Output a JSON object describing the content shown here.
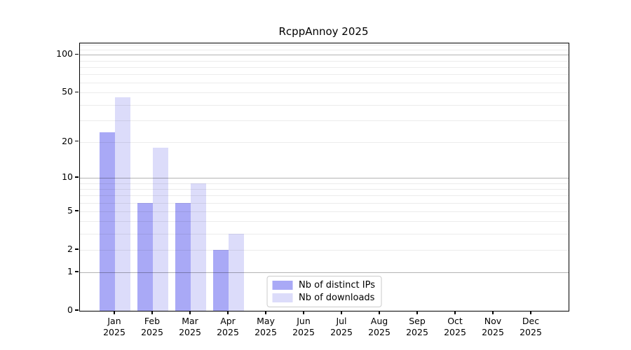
{
  "title": "RcppAnnoy 2025",
  "colors": {
    "distinct_ips": "#a9a9f6",
    "downloads": "#dcdcfa",
    "minor_grid": "#ececec",
    "major_grid": "#b3b3b3",
    "axis": "#000000",
    "legend_border": "#cccccc"
  },
  "chart_data": {
    "type": "bar",
    "title": "RcppAnnoy 2025",
    "categories": [
      "Jan 2025",
      "Feb 2025",
      "Mar 2025",
      "Apr 2025",
      "May 2025",
      "Jun 2025",
      "Jul 2025",
      "Aug 2025",
      "Sep 2025",
      "Oct 2025",
      "Nov 2025",
      "Dec 2025"
    ],
    "series": [
      {
        "name": "Nb of distinct IPs",
        "color": "#a9a9f6",
        "values": [
          24,
          6,
          6,
          2,
          0,
          0,
          0,
          0,
          0,
          0,
          0,
          0
        ]
      },
      {
        "name": "Nb of downloads",
        "color": "#dcdcfa",
        "values": [
          46,
          18,
          9,
          3,
          0,
          0,
          0,
          0,
          0,
          0,
          0,
          0
        ]
      }
    ],
    "xlabel": "",
    "ylabel": "",
    "yscale": "log1p",
    "ylim": [
      0,
      123
    ],
    "yticks": [
      0,
      1,
      2,
      5,
      10,
      20,
      50,
      100
    ],
    "grid": {
      "major": [
        1,
        10,
        100
      ],
      "minor": [
        2,
        3,
        4,
        5,
        6,
        7,
        8,
        9,
        20,
        30,
        40,
        50,
        60,
        70,
        80,
        90,
        110,
        120
      ]
    },
    "legend_position": "lower center",
    "legend": [
      "Nb of distinct IPs",
      "Nb of downloads"
    ]
  }
}
